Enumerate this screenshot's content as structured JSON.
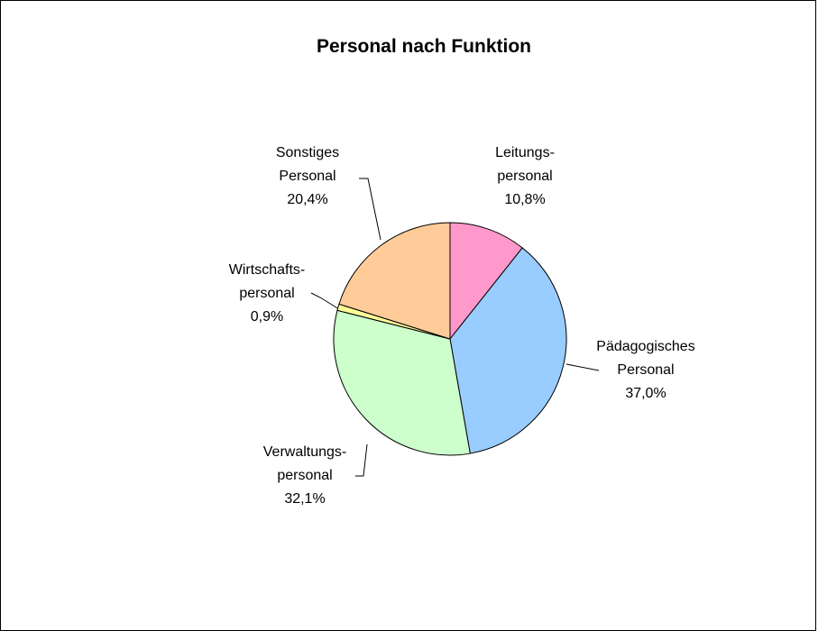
{
  "chart_data": {
    "type": "pie",
    "title": "Personal nach Funktion",
    "categories": [
      "Leitungs-\npersonal",
      "Pädagogisches\nPersonal",
      "Verwaltungs-\npersonal",
      "Wirtschafts-\npersonal",
      "Sonstiges\nPersonal"
    ],
    "values": [
      10.8,
      37.0,
      32.1,
      0.9,
      20.4
    ],
    "value_labels": [
      "10,8%",
      "37,0%",
      "32,1%",
      "0,9%",
      "20,4%"
    ],
    "colors": [
      "#FF99CC",
      "#99CCFF",
      "#CCFFCC",
      "#FFFF99",
      "#FFCC99"
    ]
  }
}
